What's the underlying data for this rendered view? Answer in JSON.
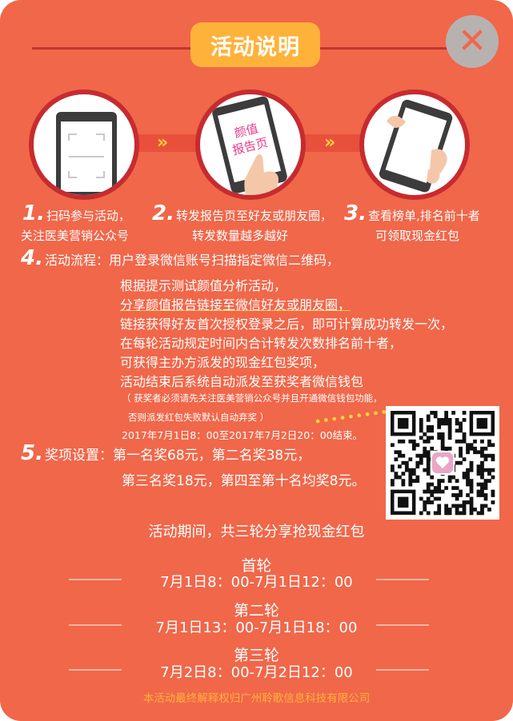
{
  "header": {
    "title": "活动说明",
    "close_label": "✕"
  },
  "steps": [
    {
      "num": "1.",
      "line1": "扫码参与活动，",
      "line2": "关注医美营销公众号"
    },
    {
      "num": "2.",
      "line1": "转发报告页至好友或朋友圈，",
      "line2": "转发数量越多越好",
      "icon_text": [
        "颜值",
        "报告页"
      ]
    },
    {
      "num": "3.",
      "line1": "查看榜单,排名前十者",
      "line2": "可领取现金红包"
    }
  ],
  "arrows": "»",
  "process": {
    "num": "4.",
    "label": "活动流程：",
    "lines": [
      "用户登录微信账号扫描指定微信二维码，",
      "根据提示测试颜值分析活动，",
      "分享颜值报告链接至微信好友或朋友圈，",
      "链接获得好友首次授权登录之后，即可计算成功转发一次，",
      "在每轮活动规定时间内合计转发次数排名前十者，",
      "可获得主办方派发的现金红包奖项，",
      "活动结束后系统自动派发至获奖者微信钱包"
    ],
    "note1": "（ 获奖者必须请先关注医美营销公众号并且开通微信钱包功能，",
    "note2": "否则派发红包失败默认自动弃奖 ）",
    "dates": "2017年7月1日8：00至2017年7月2日20：00结束。"
  },
  "prizes": {
    "num": "5.",
    "label": "奖项设置：",
    "line1": "第一名奖68元，第二名奖38元，",
    "line2": "第三名奖18元，第四至第十名均奖8元。"
  },
  "rounds_title": "活动期间，共三轮分享抢现金红包",
  "rounds": [
    {
      "name": "首轮",
      "time": "7月1日8：00-7月1日12：00"
    },
    {
      "name": "第二轮",
      "time": "7月1日13：00-7月1日18：00"
    },
    {
      "name": "第三轮",
      "time": "7月2日8：00-7月2日12：00"
    }
  ],
  "footer": "本活动最终解释权归广州聆歌信息科技有限公司"
}
